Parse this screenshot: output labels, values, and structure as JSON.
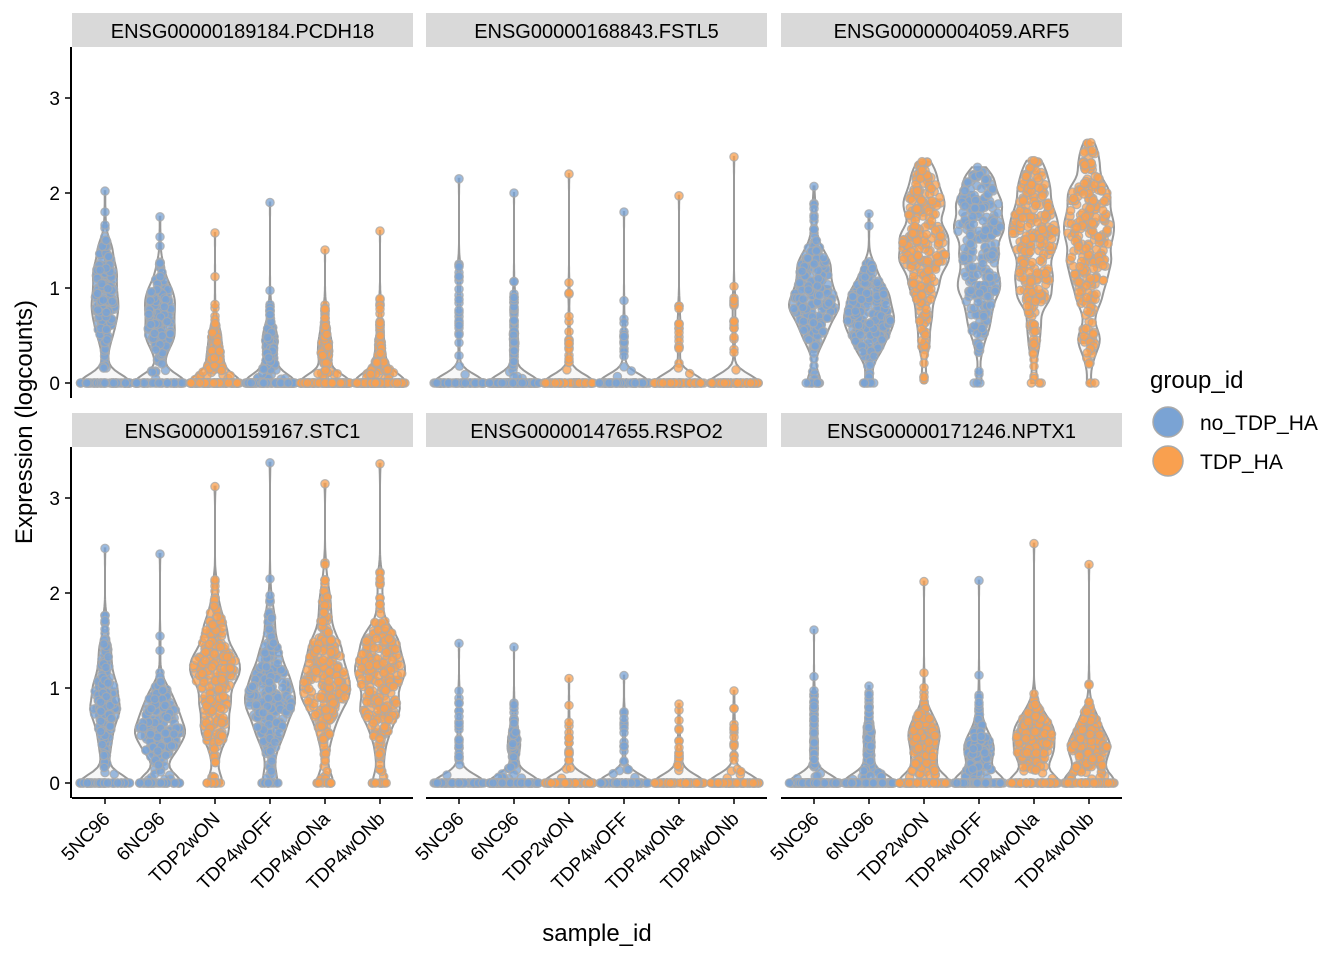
{
  "chart_data": {
    "type": "violin",
    "xlabel": "sample_id",
    "ylabel": "Expression (logcounts)",
    "ylim": [
      -0.15,
      3.5
    ],
    "yticks": [
      0,
      1,
      2,
      3
    ],
    "grid": false,
    "categories": [
      "5NC96",
      "6NC96",
      "TDP2wON",
      "TDP4wOFF",
      "TDP4wONa",
      "TDP4wONb"
    ],
    "category_group": [
      "no_TDP_HA",
      "no_TDP_HA",
      "TDP_HA",
      "no_TDP_HA",
      "TDP_HA",
      "TDP_HA"
    ],
    "legend": {
      "title": "group_id",
      "placement": "right",
      "entries": [
        {
          "name": "no_TDP_HA",
          "color": "#7aa3d4"
        },
        {
          "name": "TDP_HA",
          "color": "#f9a04f"
        }
      ]
    },
    "panels": [
      {
        "title": "ENSG00000189184.PCDH18",
        "max": [
          2.02,
          1.75,
          1.58,
          1.9,
          1.4,
          1.6
        ],
        "center": [
          0.9,
          0.7,
          0.3,
          0.35,
          0.35,
          0.3
        ],
        "zero_fraction": [
          0.3,
          0.3,
          0.55,
          0.55,
          0.6,
          0.6
        ]
      },
      {
        "title": "ENSG00000168843.FSTL5",
        "max": [
          2.15,
          2.0,
          2.2,
          1.8,
          1.97,
          2.38
        ],
        "center": [
          0.8,
          0.5,
          0.4,
          0.4,
          0.5,
          0.6
        ],
        "zero_fraction": [
          0.8,
          0.7,
          0.85,
          0.85,
          0.85,
          0.85
        ]
      },
      {
        "title": "ENSG00000004059.ARF5",
        "max": [
          2.07,
          1.78,
          2.33,
          2.27,
          2.34,
          2.53
        ],
        "center": [
          0.9,
          0.7,
          1.55,
          1.5,
          1.55,
          1.6
        ],
        "zero_fraction": [
          0.05,
          0.03,
          0.0,
          0.01,
          0.01,
          0.01
        ]
      },
      {
        "title": "ENSG00000159167.STC1",
        "max": [
          2.47,
          2.41,
          3.12,
          3.37,
          3.15,
          3.36
        ],
        "center": [
          0.9,
          0.6,
          1.1,
          1.0,
          1.1,
          1.05
        ],
        "zero_fraction": [
          0.3,
          0.2,
          0.05,
          0.05,
          0.05,
          0.05
        ]
      },
      {
        "title": "ENSG00000147655.RSPO2",
        "max": [
          1.47,
          1.43,
          1.1,
          1.13,
          0.83,
          0.97
        ],
        "center": [
          0.5,
          0.35,
          0.3,
          0.3,
          0.3,
          0.3
        ],
        "zero_fraction": [
          0.8,
          0.65,
          0.85,
          0.85,
          0.85,
          0.85
        ]
      },
      {
        "title": "ENSG00000171246.NPTX1",
        "max": [
          1.61,
          1.02,
          2.12,
          2.13,
          2.52,
          2.3
        ],
        "center": [
          0.5,
          0.35,
          0.4,
          0.35,
          0.45,
          0.4
        ],
        "zero_fraction": [
          0.7,
          0.6,
          0.35,
          0.4,
          0.3,
          0.3
        ]
      }
    ]
  }
}
